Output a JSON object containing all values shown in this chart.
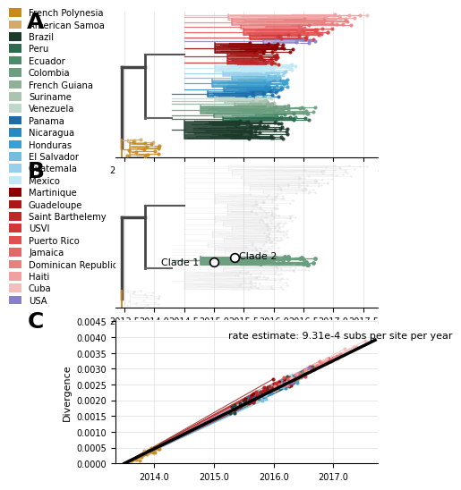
{
  "countries": [
    "French Polynesia",
    "American Samoa",
    "Brazil",
    "Peru",
    "Ecuador",
    "Colombia",
    "French Guiana",
    "Suriname",
    "Venezuela",
    "Panama",
    "Nicaragua",
    "Honduras",
    "El Salvador",
    "Guatemala",
    "Mexico",
    "Martinique",
    "Guadeloupe",
    "Saint Barthelemy",
    "USVI",
    "Puerto Rico",
    "Jamaica",
    "Dominican Republic",
    "Haiti",
    "Cuba",
    "USA"
  ],
  "colors": {
    "French Polynesia": "#C8891E",
    "American Samoa": "#D4AA6A",
    "Brazil": "#1B3A2A",
    "Peru": "#2D6A4F",
    "Ecuador": "#4A8C6A",
    "Colombia": "#6B9E7E",
    "French Guiana": "#90B09A",
    "Suriname": "#AAC4B0",
    "Venezuela": "#C0D8CC",
    "Panama": "#1A6CA8",
    "Nicaragua": "#2888C0",
    "Honduras": "#3AA0D0",
    "El Salvador": "#70BEE0",
    "Guatemala": "#98D0EC",
    "Mexico": "#C0E8F5",
    "Martinique": "#8B0000",
    "Guadeloupe": "#AA1818",
    "Saint Barthelemy": "#C02828",
    "USVI": "#D03838",
    "Puerto Rico": "#E05050",
    "Jamaica": "#E06868",
    "Dominican Republic": "#E88080",
    "Haiti": "#F0A0A0",
    "Cuba": "#F5BCBC",
    "USA": "#8880C8"
  },
  "background_color": "#FFFFFF",
  "grid_color": "#DDDDDD",
  "xlim_phylo": [
    2013.35,
    2017.75
  ],
  "xticks_phylo": [
    2013.5,
    2014.0,
    2014.5,
    2015.0,
    2015.5,
    2016.0,
    2016.5,
    2017.0,
    2017.5
  ],
  "rate_label": "rate estimate: 9.31e-4 subs per site per year",
  "ylabel_c": "Divergence",
  "ylim_c": [
    0.0,
    0.00455
  ],
  "xlim_c": [
    2013.35,
    2017.75
  ],
  "xticks_c": [
    2014.0,
    2015.0,
    2016.0,
    2017.0
  ],
  "yticks_c": [
    0.0,
    0.0005,
    0.001,
    0.0015,
    0.002,
    0.0025,
    0.003,
    0.0035,
    0.004,
    0.0045
  ]
}
